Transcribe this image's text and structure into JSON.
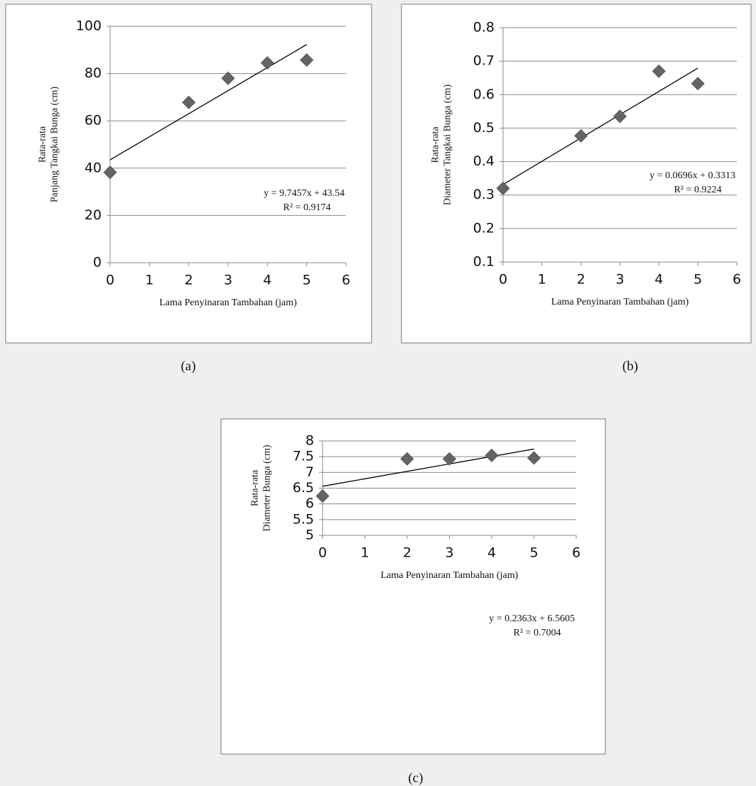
{
  "chart_data": [
    {
      "type": "scatter",
      "caption": "(a)",
      "x_label": "Lama Penyinaran Tambahan (jam)",
      "y_label": [
        "Rata-rata",
        "Panjang Tangkai Bunga (cm)"
      ],
      "x": [
        0,
        2,
        3,
        4,
        5
      ],
      "values": [
        38.2,
        67.8,
        78,
        84.5,
        85.7
      ],
      "color": "#646464",
      "xlim": [
        0,
        6
      ],
      "xticks": [
        0,
        1,
        2,
        3,
        4,
        5,
        6
      ],
      "ylim": [
        0,
        100
      ],
      "yticks": [
        0,
        20,
        40,
        60,
        80,
        100
      ],
      "grid": true,
      "trendline": {
        "equation": "y = 9.7457x + 43.54",
        "slope": 9.7457,
        "intercept": 43.54,
        "r2_label": "R² = 0.9174"
      }
    },
    {
      "type": "scatter",
      "caption": "(b)",
      "x_label": "Lama Penyinaran Tambahan (jam)",
      "y_label": [
        "Rata-rata",
        "Diameter Tangkai Bunga (cm)"
      ],
      "x": [
        0,
        2,
        3,
        4,
        5
      ],
      "values": [
        0.32,
        0.477,
        0.535,
        0.67,
        0.633
      ],
      "color": "#646464",
      "xlim": [
        0,
        6
      ],
      "xticks": [
        0,
        1,
        2,
        3,
        4,
        5,
        6
      ],
      "ylim": [
        0.1,
        0.8
      ],
      "yticks": [
        0.1,
        0.2,
        0.3,
        0.4,
        0.5,
        0.6,
        0.7,
        0.8
      ],
      "grid": true,
      "trendline": {
        "equation": "y = 0.0696x + 0.3313",
        "slope": 0.0696,
        "intercept": 0.3313,
        "r2_label": "R² = 0.9224"
      }
    },
    {
      "type": "scatter",
      "caption": "(c)",
      "x_label": "Lama Penyinaran Tambahan (jam)",
      "y_label": [
        "Rata-rata",
        "Diameter Bunga (cm)"
      ],
      "x": [
        0,
        2,
        3,
        4,
        5
      ],
      "values": [
        6.25,
        7.43,
        7.43,
        7.54,
        7.46
      ],
      "color": "#646464",
      "xlim": [
        0,
        6
      ],
      "xticks": [
        0,
        1,
        2,
        3,
        4,
        5,
        6
      ],
      "ylim": [
        5,
        8
      ],
      "yticks": [
        5,
        5.5,
        6,
        6.5,
        7,
        7.5,
        8
      ],
      "grid": true,
      "trendline": {
        "equation": "y = 0.2363x + 6.5605",
        "slope": 0.2363,
        "intercept": 6.5605,
        "r2_label": "R² = 0.7004"
      }
    }
  ]
}
